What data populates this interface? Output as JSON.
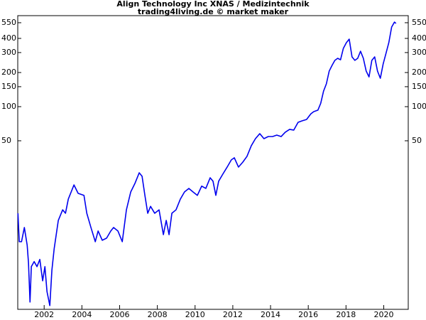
{
  "chart_data": {
    "type": "line",
    "title": "Align Technology Inc XNAS / Medizintechnik",
    "subtitle": "trading4living.de © market maker",
    "log_scale": true,
    "grid": false,
    "x": [
      2000.61,
      2000.68,
      2000.8,
      2000.95,
      2001.1,
      2001.17,
      2001.25,
      2001.32,
      2001.47,
      2001.62,
      2001.77,
      2001.92,
      2002.04,
      2002.15,
      2002.3,
      2002.41,
      2002.53,
      2002.75,
      2002.98,
      2003.13,
      2003.28,
      2003.58,
      2003.8,
      2004.11,
      2004.26,
      2004.48,
      2004.71,
      2004.86,
      2005.08,
      2005.31,
      2005.53,
      2005.68,
      2005.91,
      2006.14,
      2006.36,
      2006.59,
      2006.81,
      2007.04,
      2007.19,
      2007.34,
      2007.49,
      2007.64,
      2007.86,
      2008.09,
      2008.32,
      2008.47,
      2008.62,
      2008.77,
      2008.99,
      2009.22,
      2009.44,
      2009.67,
      2009.89,
      2010.12,
      2010.35,
      2010.57,
      2010.8,
      2010.95,
      2011.1,
      2011.25,
      2011.47,
      2011.7,
      2011.92,
      2012.08,
      2012.3,
      2012.53,
      2012.75,
      2012.98,
      2013.2,
      2013.43,
      2013.65,
      2013.88,
      2014.11,
      2014.33,
      2014.56,
      2014.78,
      2015.01,
      2015.23,
      2015.46,
      2015.68,
      2015.91,
      2016.14,
      2016.29,
      2016.51,
      2016.66,
      2016.81,
      2016.96,
      2017.11,
      2017.26,
      2017.41,
      2017.56,
      2017.71,
      2017.86,
      2018.02,
      2018.17,
      2018.32,
      2018.47,
      2018.62,
      2018.77,
      2018.92,
      2019.07,
      2019.22,
      2019.37,
      2019.52,
      2019.67,
      2019.82,
      2019.97,
      2020.12,
      2020.27,
      2020.42,
      2020.57,
      2020.65
    ],
    "series": [
      {
        "color": "#0000ee",
        "values": [
          11.47,
          6.44,
          6.44,
          8.59,
          5.99,
          4.18,
          1.89,
          3.88,
          4.3,
          3.88,
          4.49,
          2.91,
          3.88,
          2.34,
          1.76,
          3.61,
          5.57,
          9.93,
          12.3,
          11.47,
          15.3,
          20.4,
          17.2,
          16.5,
          11.47,
          8.59,
          6.44,
          8.0,
          6.63,
          6.92,
          8.0,
          8.59,
          8.0,
          6.44,
          12.3,
          17.7,
          21.0,
          26.1,
          24.3,
          16.5,
          11.47,
          13.2,
          11.47,
          12.3,
          7.43,
          9.93,
          7.43,
          11.47,
          12.3,
          15.3,
          17.7,
          19.0,
          17.7,
          16.5,
          19.9,
          19.0,
          23.6,
          22.0,
          16.5,
          22.0,
          25.4,
          29.3,
          33.9,
          35.4,
          29.3,
          32.4,
          36.4,
          45.2,
          52.2,
          57.8,
          52.2,
          54.5,
          54.5,
          56.1,
          54.5,
          59.5,
          63.0,
          62.1,
          72.8,
          75.0,
          77.1,
          86.5,
          90.4,
          93.1,
          107,
          137,
          159,
          206,
          231,
          256,
          267,
          259,
          327,
          367,
          394,
          275,
          256,
          267,
          308,
          267,
          206,
          183,
          256,
          275,
          206,
          178,
          238,
          295,
          367,
          504,
          557,
          542
        ]
      }
    ],
    "xlim": [
      2000.6,
      2021.3
    ],
    "xticks": [
      2002,
      2004,
      2006,
      2008,
      2010,
      2012,
      2014,
      2016,
      2018,
      2020
    ],
    "ylim": [
      1.63,
      635
    ],
    "yticks": [
      50,
      100,
      150,
      200,
      300,
      400,
      550
    ],
    "y2lim": [
      1.63,
      635
    ],
    "y2ticks": [
      50,
      100,
      150,
      200,
      300,
      400,
      550
    ]
  }
}
